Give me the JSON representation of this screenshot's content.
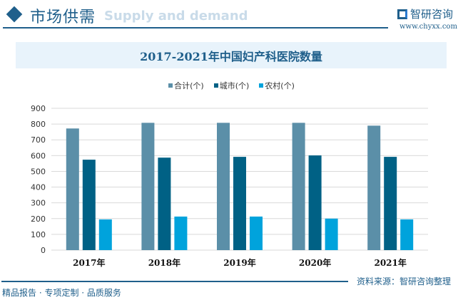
{
  "header": {
    "section_title": "市场供需",
    "section_subtitle": "Supply and demand",
    "logo_text": "智研咨询",
    "url": "www.chyxx.com"
  },
  "footer": {
    "source": "资料来源：智研咨询整理",
    "slogan": "精品报告 · 专项定制 · 品质服务"
  },
  "colors": {
    "total": "#5b8fa8",
    "urban": "#006185",
    "rural": "#00a3dc",
    "brand": "#1f5f8b"
  },
  "chart_data": {
    "type": "bar",
    "title": "2017-2021年中国妇产科医院数量",
    "categories": [
      "2017年",
      "2018年",
      "2019年",
      "2020年",
      "2021年"
    ],
    "series": [
      {
        "name": "合计(个)",
        "values": [
          772,
          808,
          808,
          808,
          790
        ]
      },
      {
        "name": "城市(个)",
        "values": [
          574,
          587,
          592,
          601,
          592
        ]
      },
      {
        "name": "农村(个)",
        "values": [
          195,
          213,
          213,
          200,
          195
        ]
      }
    ],
    "ylim": [
      0,
      900
    ],
    "yticks": [
      "0",
      "100",
      "200",
      "300",
      "400",
      "500",
      "600",
      "700",
      "800",
      "900"
    ],
    "grid": true,
    "legend": "top"
  }
}
